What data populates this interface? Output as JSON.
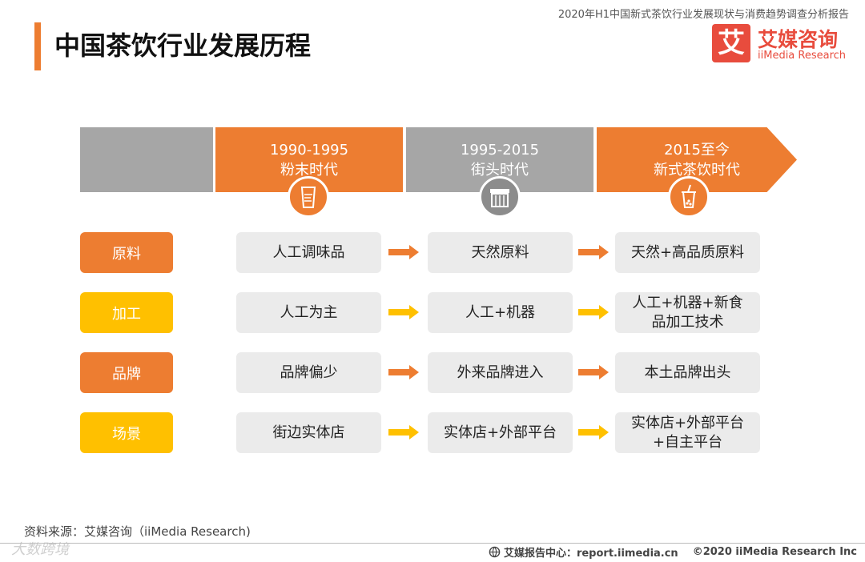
{
  "header": {
    "report_title": "2020年H1中国新式茶饮行业发展现状与消费趋势调查分析报告",
    "page_title": "中国茶饮行业发展历程",
    "logo_mark": "艾",
    "logo_cn": "艾媒咨询",
    "logo_en": "iiMedia Research"
  },
  "colors": {
    "orange": "#ed7d31",
    "gray": "#a6a6a6",
    "yellow": "#ffc000",
    "cell_bg": "#ebebeb",
    "brand_red": "#e84c3d"
  },
  "stages": [
    {
      "years": "1990-1995",
      "name": "粉末时代",
      "color": "orange",
      "icon": "powder-cup-icon"
    },
    {
      "years": "1995-2015",
      "name": "街头时代",
      "color": "gray",
      "icon": "storefront-icon"
    },
    {
      "years": "2015至今",
      "name": "新式茶饮时代",
      "color": "orange",
      "icon": "bubble-tea-icon"
    }
  ],
  "rows": [
    {
      "label": "原料",
      "color": "orange",
      "cells": [
        "人工调味品",
        "天然原料",
        "天然+高品质原料"
      ]
    },
    {
      "label": "加工",
      "color": "yellow",
      "cells": [
        "人工为主",
        "人工+机器",
        "人工+机器+新食品加工技术"
      ]
    },
    {
      "label": "品牌",
      "color": "orange",
      "cells": [
        "品牌偏少",
        "外来品牌进入",
        "本土品牌出头"
      ]
    },
    {
      "label": "场景",
      "color": "yellow",
      "cells": [
        "街边实体店",
        "实体店+外部平台",
        "实体店+外部平台+自主平台"
      ]
    }
  ],
  "footer": {
    "source": "资料来源：艾媒咨询（iiMedia Research)",
    "watermark": "大数跨境",
    "report_center": "艾媒报告中心：report.iimedia.cn",
    "copyright": "©2020  iiMedia Research  Inc"
  }
}
